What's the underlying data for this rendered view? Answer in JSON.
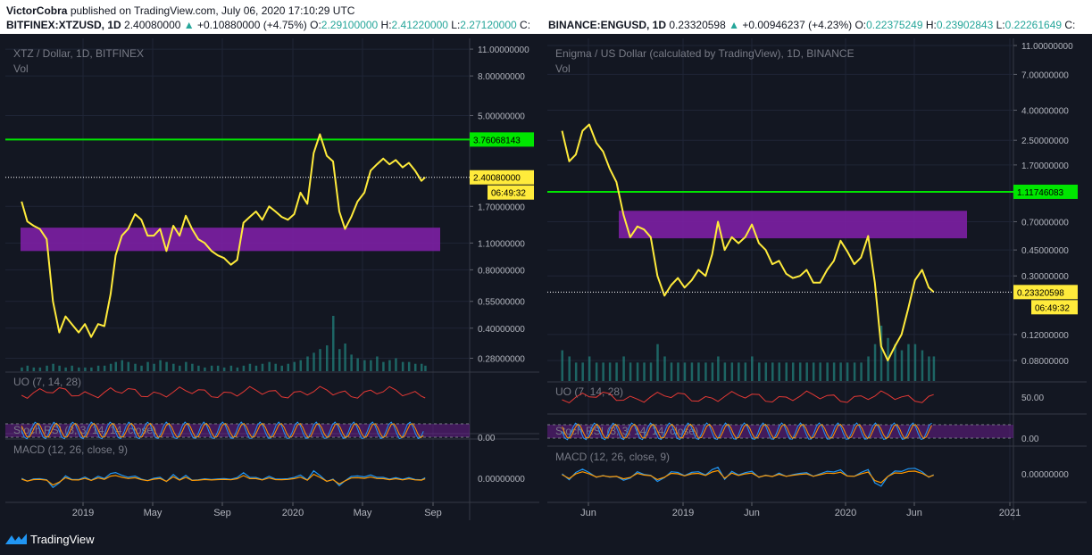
{
  "header": {
    "author": "VictorCobra",
    "published_text": "published on TradingView.com, July 06, 2020 17:10:29 UTC",
    "left_ohlc": {
      "symbol": "BITFINEX:XTZUSD, 1D",
      "last": "2.40080000",
      "change": "+0.10880000 (+4.75%)",
      "open_label": "O:",
      "open": "2.29100000",
      "high_label": "H:",
      "high": "2.41220000",
      "low_label": "L:",
      "low": "2.27120000",
      "close_label": "C:"
    },
    "right_ohlc": {
      "symbol": "BINANCE:ENGUSD, 1D",
      "last": "0.23320598",
      "change": "+0.00946237 (+4.23%)",
      "open_label": "O:",
      "open": "0.22375249",
      "high_label": "H:",
      "high": "0.23902843",
      "low_label": "L:",
      "low": "0.22261649",
      "close_label": "C:"
    }
  },
  "footer": {
    "brand": "TradingView"
  },
  "colors": {
    "price_line": "#ffeb3b",
    "level_line": "#00e600",
    "zone": "#7b1fa2",
    "uo_line": "#e53935",
    "stoch_k": "#2196f3",
    "stoch_d": "#ff9800",
    "macd_line": "#2196f3",
    "signal_line": "#ff9800",
    "volume": "#26a69a",
    "background": "#131722"
  },
  "chart_data": [
    {
      "type": "line",
      "title": "XTZ / Dollar, 1D, BITFINEX",
      "subtitle": "Vol",
      "scale": "log",
      "ylim": [
        0.24,
        12.5
      ],
      "y_ticks": [
        "11.00000000",
        "8.00000000",
        "5.00000000",
        "1.70000000",
        "1.10000000",
        "0.80000000",
        "0.55000000",
        "0.40000000",
        "0.28000000"
      ],
      "x_ticks": [
        "2019",
        "May",
        "Sep",
        "2020",
        "May",
        "Sep"
      ],
      "price_labels": {
        "level": "3.76068143",
        "last": "2.40080000",
        "countdown": "06:49:32"
      },
      "level_value": 3.76,
      "zone": {
        "from": 1.0,
        "to": 1.32
      },
      "series": [
        {
          "x": [
            "2018-10-01",
            "2018-10-10",
            "2018-10-20",
            "2018-10-30",
            "2018-11-10",
            "2018-11-20",
            "2018-11-30",
            "2018-12-10",
            "2018-12-20",
            "2018-12-31",
            "2019-01-10",
            "2019-01-20",
            "2019-01-31",
            "2019-02-10",
            "2019-02-20",
            "2019-02-28",
            "2019-03-10",
            "2019-03-20",
            "2019-03-31",
            "2019-04-10",
            "2019-04-20",
            "2019-04-30",
            "2019-05-10",
            "2019-05-20",
            "2019-05-31",
            "2019-06-10",
            "2019-06-20",
            "2019-06-30",
            "2019-07-10",
            "2019-07-20",
            "2019-07-31",
            "2019-08-10",
            "2019-08-20",
            "2019-08-31",
            "2019-09-10",
            "2019-09-20",
            "2019-09-30",
            "2019-10-10",
            "2019-10-20",
            "2019-10-31",
            "2019-11-10",
            "2019-11-20",
            "2019-11-30",
            "2019-12-10",
            "2019-12-20",
            "2019-12-31",
            "2020-01-10",
            "2020-01-20",
            "2020-01-31",
            "2020-02-10",
            "2020-02-20",
            "2020-02-29",
            "2020-03-10",
            "2020-03-20",
            "2020-03-31",
            "2020-04-10",
            "2020-04-20",
            "2020-04-30",
            "2020-05-10",
            "2020-05-20",
            "2020-05-31",
            "2020-06-10",
            "2020-06-20",
            "2020-06-30",
            "2020-07-06"
          ],
          "y": [
            1.8,
            1.42,
            1.35,
            1.3,
            1.15,
            0.55,
            0.38,
            0.46,
            0.42,
            0.38,
            0.42,
            0.36,
            0.42,
            0.41,
            0.6,
            0.95,
            1.2,
            1.3,
            1.55,
            1.45,
            1.2,
            1.2,
            1.3,
            1.0,
            1.35,
            1.2,
            1.52,
            1.3,
            1.15,
            1.1,
            1.0,
            0.95,
            0.92,
            0.85,
            0.9,
            1.4,
            1.5,
            1.6,
            1.45,
            1.7,
            1.6,
            1.5,
            1.45,
            1.55,
            2.0,
            1.75,
            3.2,
            4.0,
            3.1,
            2.9,
            1.6,
            1.3,
            1.5,
            1.8,
            2.0,
            2.6,
            2.8,
            3.0,
            2.8,
            2.95,
            2.7,
            2.85,
            2.6,
            2.3,
            2.4
          ]
        }
      ],
      "volume": [
        2,
        3,
        2,
        2,
        3,
        4,
        3,
        2,
        3,
        2,
        2,
        2,
        3,
        3,
        4,
        5,
        6,
        5,
        4,
        3,
        5,
        4,
        6,
        5,
        4,
        3,
        5,
        4,
        3,
        2,
        3,
        3,
        2,
        3,
        2,
        3,
        4,
        3,
        4,
        5,
        4,
        3,
        4,
        5,
        6,
        8,
        10,
        12,
        14,
        30,
        12,
        15,
        9,
        7,
        6,
        6,
        8,
        5,
        6,
        7,
        5,
        5,
        4,
        4,
        3
      ],
      "indicators": [
        {
          "name": "UO (7, 14, 28)",
          "axis_label": ""
        },
        {
          "name": "Stoch RSI (3, 3, 14, 14, close)",
          "axis_label": "0.00"
        },
        {
          "name": "MACD (12, 26, close, 9)",
          "axis_label": "0.00000000"
        }
      ]
    },
    {
      "type": "line",
      "title": "Enigma / US Dollar (calculated by TradingView), 1D, BINANCE",
      "subtitle": "Vol",
      "scale": "log",
      "ylim": [
        0.058,
        12.3
      ],
      "y_ticks": [
        "11.00000000",
        "7.00000000",
        "4.00000000",
        "2.50000000",
        "1.70000000",
        "0.70000000",
        "0.45000000",
        "0.30000000",
        "0.12000000",
        "0.08000000"
      ],
      "x_ticks": [
        "Jun",
        "2019",
        "Jun",
        "2020",
        "Jun",
        "2021"
      ],
      "price_labels": {
        "level": "1.11746083",
        "last": "0.23320598",
        "countdown": "06:49:32"
      },
      "level_value": 1.117,
      "zone": {
        "from": 0.54,
        "to": 0.83
      },
      "series": [
        {
          "x": [
            "2018-03-25",
            "2018-04-10",
            "2018-04-25",
            "2018-05-10",
            "2018-05-25",
            "2018-06-10",
            "2018-06-25",
            "2018-07-10",
            "2018-07-25",
            "2018-08-10",
            "2018-08-25",
            "2018-09-10",
            "2018-09-25",
            "2018-10-10",
            "2018-10-25",
            "2018-11-10",
            "2018-11-25",
            "2018-12-10",
            "2018-12-25",
            "2019-01-10",
            "2019-01-25",
            "2019-02-10",
            "2019-02-25",
            "2019-03-10",
            "2019-03-25",
            "2019-04-10",
            "2019-04-25",
            "2019-05-10",
            "2019-05-25",
            "2019-06-10",
            "2019-06-25",
            "2019-07-10",
            "2019-07-25",
            "2019-08-10",
            "2019-08-25",
            "2019-09-10",
            "2019-09-25",
            "2019-10-10",
            "2019-10-25",
            "2019-11-10",
            "2019-11-25",
            "2019-12-10",
            "2019-12-25",
            "2020-01-10",
            "2020-01-25",
            "2020-02-10",
            "2020-02-25",
            "2020-03-10",
            "2020-03-25",
            "2020-04-10",
            "2020-04-25",
            "2020-05-10",
            "2020-05-25",
            "2020-06-10",
            "2020-06-25",
            "2020-07-06"
          ],
          "y": [
            2.9,
            1.8,
            2.0,
            2.9,
            3.2,
            2.4,
            2.1,
            1.6,
            1.3,
            0.78,
            0.55,
            0.65,
            0.62,
            0.55,
            0.3,
            0.22,
            0.26,
            0.29,
            0.25,
            0.28,
            0.33,
            0.3,
            0.42,
            0.7,
            0.45,
            0.55,
            0.5,
            0.55,
            0.67,
            0.5,
            0.45,
            0.36,
            0.38,
            0.31,
            0.29,
            0.3,
            0.33,
            0.27,
            0.27,
            0.33,
            0.38,
            0.52,
            0.44,
            0.36,
            0.4,
            0.56,
            0.27,
            0.1,
            0.08,
            0.1,
            0.12,
            0.18,
            0.28,
            0.33,
            0.25,
            0.233
          ]
        }
      ],
      "volume": [
        5,
        4,
        3,
        3,
        4,
        3,
        3,
        3,
        3,
        4,
        3,
        3,
        3,
        3,
        6,
        4,
        3,
        3,
        3,
        3,
        3,
        3,
        3,
        4,
        3,
        3,
        3,
        3,
        4,
        3,
        3,
        3,
        3,
        3,
        3,
        3,
        3,
        3,
        3,
        3,
        3,
        3,
        3,
        3,
        3,
        4,
        6,
        9,
        7,
        6,
        5,
        6,
        6,
        5,
        4,
        4
      ],
      "indicators": [
        {
          "name": "UO (7, 14, 28)",
          "axis_label": "50.00"
        },
        {
          "name": "Stoch RSI (3, 3, 14, 14, close)",
          "axis_label": "0.00"
        },
        {
          "name": "MACD (12, 26, close, 9)",
          "axis_label": "0.00000000"
        }
      ]
    }
  ]
}
